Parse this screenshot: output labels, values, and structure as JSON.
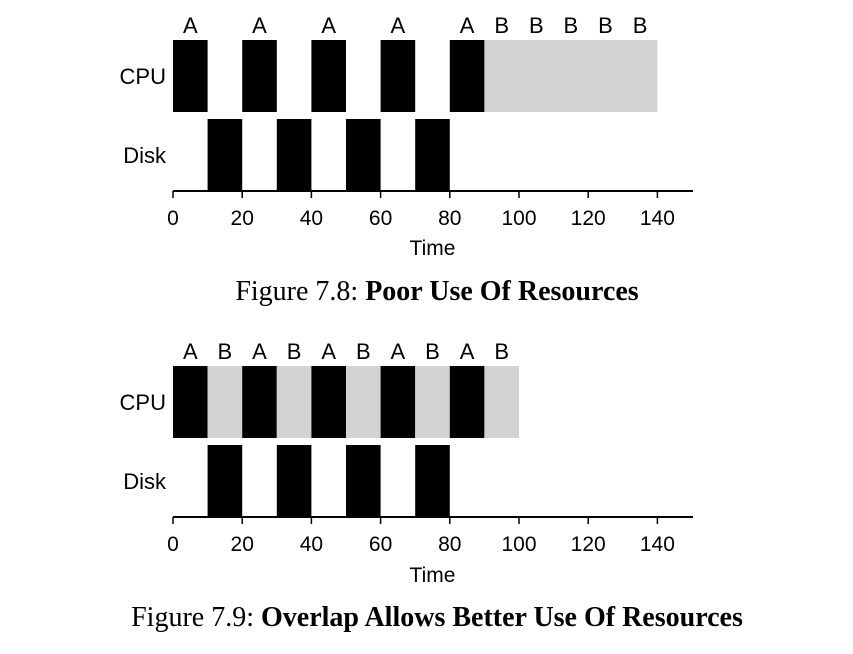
{
  "colors": {
    "job_a": "#000000",
    "job_b": "#d3d3d3"
  },
  "chart_data": [
    {
      "type": "gantt",
      "caption_prefix": "Figure 7.8:",
      "caption_title": "Poor Use Of Resources",
      "xlabel": "Time",
      "xlim": [
        0,
        150
      ],
      "xticks": [
        0,
        20,
        40,
        60,
        80,
        100,
        120,
        140
      ],
      "rows": [
        "CPU",
        "Disk"
      ],
      "bars": [
        {
          "row": "CPU",
          "start": 0,
          "end": 10,
          "job": "A",
          "label": "A"
        },
        {
          "row": "CPU",
          "start": 20,
          "end": 30,
          "job": "A",
          "label": "A"
        },
        {
          "row": "CPU",
          "start": 40,
          "end": 50,
          "job": "A",
          "label": "A"
        },
        {
          "row": "CPU",
          "start": 60,
          "end": 70,
          "job": "A",
          "label": "A"
        },
        {
          "row": "CPU",
          "start": 80,
          "end": 90,
          "job": "A",
          "label": "A"
        },
        {
          "row": "CPU",
          "start": 90,
          "end": 140,
          "job": "B",
          "label": ""
        },
        {
          "row": "Disk",
          "start": 10,
          "end": 20,
          "job": "A",
          "label": ""
        },
        {
          "row": "Disk",
          "start": 30,
          "end": 40,
          "job": "A",
          "label": ""
        },
        {
          "row": "Disk",
          "start": 50,
          "end": 60,
          "job": "A",
          "label": ""
        },
        {
          "row": "Disk",
          "start": 70,
          "end": 80,
          "job": "A",
          "label": ""
        }
      ],
      "top_labels": [
        {
          "x": 5,
          "text": "A"
        },
        {
          "x": 25,
          "text": "A"
        },
        {
          "x": 45,
          "text": "A"
        },
        {
          "x": 65,
          "text": "A"
        },
        {
          "x": 85,
          "text": "A"
        },
        {
          "x": 95,
          "text": "B"
        },
        {
          "x": 105,
          "text": "B"
        },
        {
          "x": 115,
          "text": "B"
        },
        {
          "x": 125,
          "text": "B"
        },
        {
          "x": 135,
          "text": "B"
        }
      ]
    },
    {
      "type": "gantt",
      "caption_prefix": "Figure 7.9:",
      "caption_title": "Overlap Allows Better Use Of Resources",
      "xlabel": "Time",
      "xlim": [
        0,
        150
      ],
      "xticks": [
        0,
        20,
        40,
        60,
        80,
        100,
        120,
        140
      ],
      "rows": [
        "CPU",
        "Disk"
      ],
      "bars": [
        {
          "row": "CPU",
          "start": 0,
          "end": 10,
          "job": "A",
          "label": "A"
        },
        {
          "row": "CPU",
          "start": 10,
          "end": 20,
          "job": "B",
          "label": "B"
        },
        {
          "row": "CPU",
          "start": 20,
          "end": 30,
          "job": "A",
          "label": "A"
        },
        {
          "row": "CPU",
          "start": 30,
          "end": 40,
          "job": "B",
          "label": "B"
        },
        {
          "row": "CPU",
          "start": 40,
          "end": 50,
          "job": "A",
          "label": "A"
        },
        {
          "row": "CPU",
          "start": 50,
          "end": 60,
          "job": "B",
          "label": "B"
        },
        {
          "row": "CPU",
          "start": 60,
          "end": 70,
          "job": "A",
          "label": "A"
        },
        {
          "row": "CPU",
          "start": 70,
          "end": 80,
          "job": "B",
          "label": "B"
        },
        {
          "row": "CPU",
          "start": 80,
          "end": 90,
          "job": "A",
          "label": "A"
        },
        {
          "row": "CPU",
          "start": 90,
          "end": 100,
          "job": "B",
          "label": "B"
        },
        {
          "row": "Disk",
          "start": 10,
          "end": 20,
          "job": "A",
          "label": ""
        },
        {
          "row": "Disk",
          "start": 30,
          "end": 40,
          "job": "A",
          "label": ""
        },
        {
          "row": "Disk",
          "start": 50,
          "end": 60,
          "job": "A",
          "label": ""
        },
        {
          "row": "Disk",
          "start": 70,
          "end": 80,
          "job": "A",
          "label": ""
        }
      ],
      "top_labels": [
        {
          "x": 5,
          "text": "A"
        },
        {
          "x": 15,
          "text": "B"
        },
        {
          "x": 25,
          "text": "A"
        },
        {
          "x": 35,
          "text": "B"
        },
        {
          "x": 45,
          "text": "A"
        },
        {
          "x": 55,
          "text": "B"
        },
        {
          "x": 65,
          "text": "A"
        },
        {
          "x": 75,
          "text": "B"
        },
        {
          "x": 85,
          "text": "A"
        },
        {
          "x": 95,
          "text": "B"
        }
      ]
    }
  ]
}
